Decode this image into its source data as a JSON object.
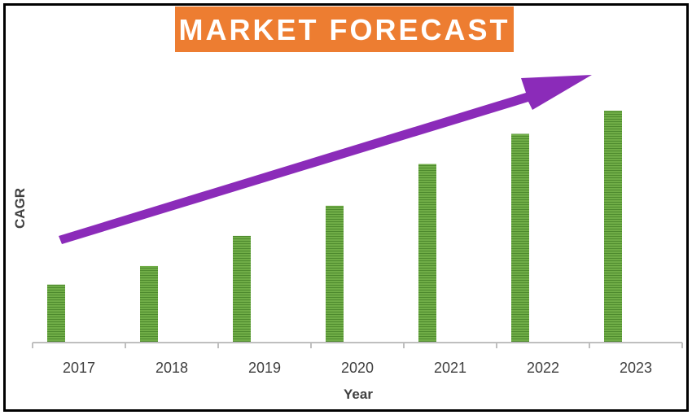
{
  "chart_data": {
    "type": "bar",
    "title": "MARKET FORECAST",
    "xlabel": "Year",
    "ylabel": "CAGR",
    "categories": [
      "2017",
      "2018",
      "2019",
      "2020",
      "2021",
      "2022",
      "2023"
    ],
    "values": [
      25,
      33,
      46,
      59,
      77,
      90,
      100
    ],
    "ylim": [
      0,
      110
    ],
    "grid": false,
    "legend": "none",
    "annotations": [
      {
        "type": "trend-arrow",
        "direction": "upward",
        "color": "#8b2bb9"
      }
    ],
    "colors": {
      "bar": "#70ad47",
      "bar_dark": "#4e8a2e",
      "title_bg": "#ed7d31",
      "axis": "#bfbfbf",
      "text": "#404040"
    }
  }
}
